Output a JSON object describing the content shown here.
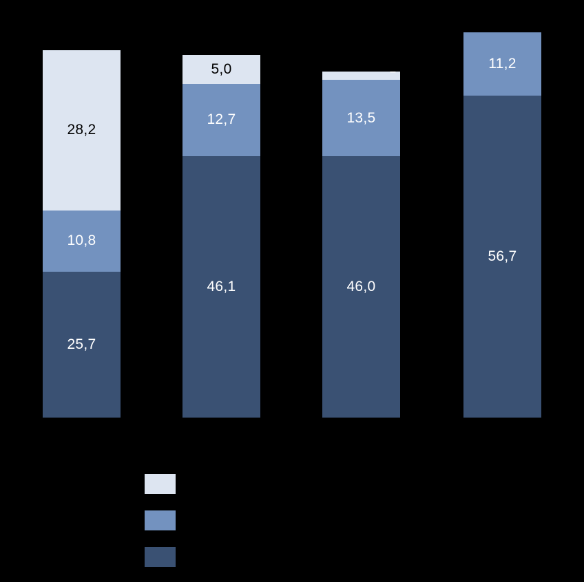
{
  "background": "#000000",
  "chart_data": {
    "type": "bar",
    "stacked": true,
    "orientation": "vertical",
    "decimal_separator": ",",
    "categories": [
      "",
      "",
      "",
      ""
    ],
    "series": [
      {
        "name": "bottom-dark-blue-series",
        "color": "#3A5173",
        "label_color": "#FFFFFF",
        "values": [
          25.7,
          46.1,
          46.0,
          56.7
        ],
        "labels": [
          "25,7",
          "46,1",
          "46,0",
          "56,7"
        ]
      },
      {
        "name": "middle-medium-blue-series",
        "color": "#7392BF",
        "label_color": "#FFFFFF",
        "values": [
          10.8,
          12.7,
          13.5,
          11.2
        ],
        "labels": [
          "10,8",
          "12,7",
          "13,5",
          "11,2"
        ]
      },
      {
        "name": "top-light-blue-series",
        "color": "#DDE5F1",
        "label_color": "#000000",
        "values": [
          28.2,
          5.0,
          1.5,
          0
        ],
        "labels": [
          "28,2",
          "5,0",
          "",
          ""
        ]
      }
    ],
    "annotations": [
      {
        "text": "–",
        "color": "#FFFFFF",
        "target_bar_index": 2
      }
    ],
    "legend": {
      "position": "bottom-left",
      "entries": [
        {
          "swatch_color": "#DDE5F1",
          "label": ""
        },
        {
          "swatch_color": "#7392BF",
          "label": ""
        },
        {
          "swatch_color": "#3A5173",
          "label": ""
        }
      ]
    },
    "title": "",
    "xlabel": "",
    "ylabel": ""
  }
}
